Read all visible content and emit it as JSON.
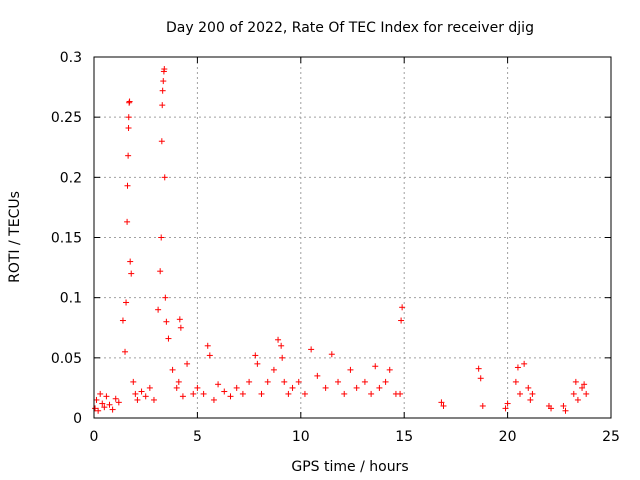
{
  "chart_data": {
    "type": "scatter",
    "title": "Day 200 of 2022, Rate Of TEC Index for receiver djig",
    "xlabel": "GPS time / hours",
    "ylabel": "ROTI / TECUs",
    "xlim": [
      0,
      25
    ],
    "ylim": [
      0,
      0.3
    ],
    "xticks": [
      0,
      5,
      10,
      15,
      20,
      25
    ],
    "yticks": [
      0,
      0.05,
      0.1,
      0.15,
      0.2,
      0.25,
      0.3
    ],
    "xtick_labels": [
      "0",
      "5",
      "10",
      "15",
      "20",
      "25"
    ],
    "ytick_labels": [
      "0",
      "0.05",
      "0.1",
      "0.15",
      "0.2",
      "0.25",
      "0.3"
    ],
    "grid": true,
    "marker": "+",
    "color": "#ff0000",
    "series": [
      {
        "name": "ROTI",
        "x": [
          0.05,
          0.12,
          0.2,
          0.3,
          0.4,
          0.5,
          0.6,
          0.75,
          0.9,
          1.05,
          1.2,
          1.4,
          1.5,
          1.55,
          1.6,
          1.62,
          1.65,
          1.67,
          1.68,
          1.7,
          1.72,
          1.75,
          1.8,
          1.9,
          2.0,
          2.1,
          2.3,
          2.5,
          2.7,
          2.9,
          3.1,
          3.2,
          3.25,
          3.28,
          3.3,
          3.32,
          3.35,
          3.38,
          3.4,
          3.42,
          3.45,
          3.5,
          3.6,
          3.8,
          4.0,
          4.1,
          4.15,
          4.2,
          4.3,
          4.5,
          4.8,
          5.0,
          5.3,
          5.5,
          5.6,
          5.8,
          6.0,
          6.3,
          6.6,
          6.9,
          7.2,
          7.5,
          7.8,
          7.9,
          8.1,
          8.4,
          8.7,
          8.9,
          9.05,
          9.1,
          9.2,
          9.4,
          9.6,
          9.9,
          10.2,
          10.5,
          10.8,
          11.2,
          11.5,
          11.8,
          12.1,
          12.4,
          12.7,
          13.1,
          13.4,
          13.6,
          13.8,
          14.1,
          14.3,
          14.6,
          14.8,
          14.85,
          14.9,
          16.8,
          16.9,
          18.6,
          18.7,
          18.8,
          19.9,
          20.0,
          20.4,
          20.5,
          20.6,
          20.8,
          21.0,
          21.1,
          21.2,
          22.0,
          22.1,
          22.7,
          22.8,
          23.2,
          23.3,
          23.4,
          23.6,
          23.7,
          23.8
        ],
        "y": [
          0.008,
          0.015,
          0.006,
          0.02,
          0.012,
          0.009,
          0.018,
          0.011,
          0.007,
          0.016,
          0.013,
          0.081,
          0.055,
          0.096,
          0.163,
          0.193,
          0.218,
          0.241,
          0.25,
          0.262,
          0.263,
          0.13,
          0.12,
          0.03,
          0.02,
          0.015,
          0.022,
          0.018,
          0.025,
          0.015,
          0.09,
          0.122,
          0.15,
          0.23,
          0.26,
          0.272,
          0.28,
          0.288,
          0.29,
          0.2,
          0.1,
          0.08,
          0.066,
          0.04,
          0.025,
          0.03,
          0.082,
          0.075,
          0.018,
          0.045,
          0.02,
          0.025,
          0.02,
          0.06,
          0.052,
          0.015,
          0.028,
          0.022,
          0.018,
          0.025,
          0.02,
          0.03,
          0.052,
          0.045,
          0.02,
          0.03,
          0.04,
          0.065,
          0.06,
          0.05,
          0.03,
          0.02,
          0.025,
          0.03,
          0.02,
          0.057,
          0.035,
          0.025,
          0.053,
          0.03,
          0.02,
          0.04,
          0.025,
          0.03,
          0.02,
          0.043,
          0.025,
          0.03,
          0.04,
          0.02,
          0.02,
          0.081,
          0.092,
          0.013,
          0.01,
          0.041,
          0.033,
          0.01,
          0.008,
          0.012,
          0.03,
          0.042,
          0.02,
          0.045,
          0.025,
          0.015,
          0.02,
          0.01,
          0.008,
          0.01,
          0.006,
          0.02,
          0.03,
          0.015,
          0.025,
          0.028,
          0.02
        ]
      }
    ]
  }
}
